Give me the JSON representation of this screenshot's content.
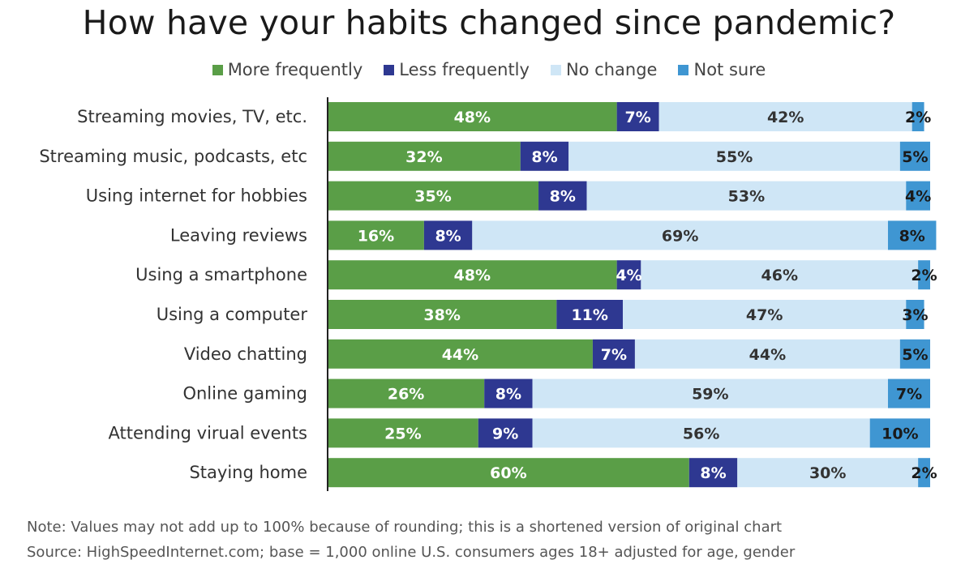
{
  "chart_data": {
    "type": "bar",
    "orientation": "horizontal",
    "stacked": true,
    "title": "How have your habits changed since pandemic?",
    "categories": [
      "Streaming movies, TV, etc.",
      "Streaming music, podcasts, etc",
      "Using internet for hobbies",
      "Leaving reviews",
      "Using a smartphone",
      "Using a computer",
      "Video chatting",
      "Online gaming",
      "Attending virual events",
      "Staying home"
    ],
    "series": [
      {
        "name": "More frequently",
        "color": "#5a9e47",
        "label_color": "#ffffff",
        "values": [
          48,
          32,
          35,
          16,
          48,
          38,
          44,
          26,
          25,
          60
        ]
      },
      {
        "name": "Less frequently",
        "color": "#2e3891",
        "label_color": "#ffffff",
        "values": [
          7,
          8,
          8,
          8,
          4,
          11,
          7,
          8,
          9,
          8
        ]
      },
      {
        "name": "No change",
        "color": "#cfe6f6",
        "label_color": "#333333",
        "values": [
          42,
          55,
          53,
          69,
          46,
          47,
          44,
          59,
          56,
          30
        ]
      },
      {
        "name": "Not sure",
        "color": "#3f96d2",
        "label_color": "#1a1a1a",
        "values": [
          2,
          5,
          4,
          8,
          2,
          3,
          5,
          7,
          10,
          2
        ]
      }
    ],
    "value_suffix": "%",
    "xlim": [
      0,
      100
    ],
    "xlabel": "",
    "ylabel": "",
    "legend_position": "top-center"
  },
  "notes": {
    "note": "Note: Values may not add up to 100% because of rounding; this is a shortened version of original chart",
    "source": "Source: HighSpeedInternet.com; base = 1,000 online U.S. consumers ages 18+ adjusted for age, gender"
  }
}
